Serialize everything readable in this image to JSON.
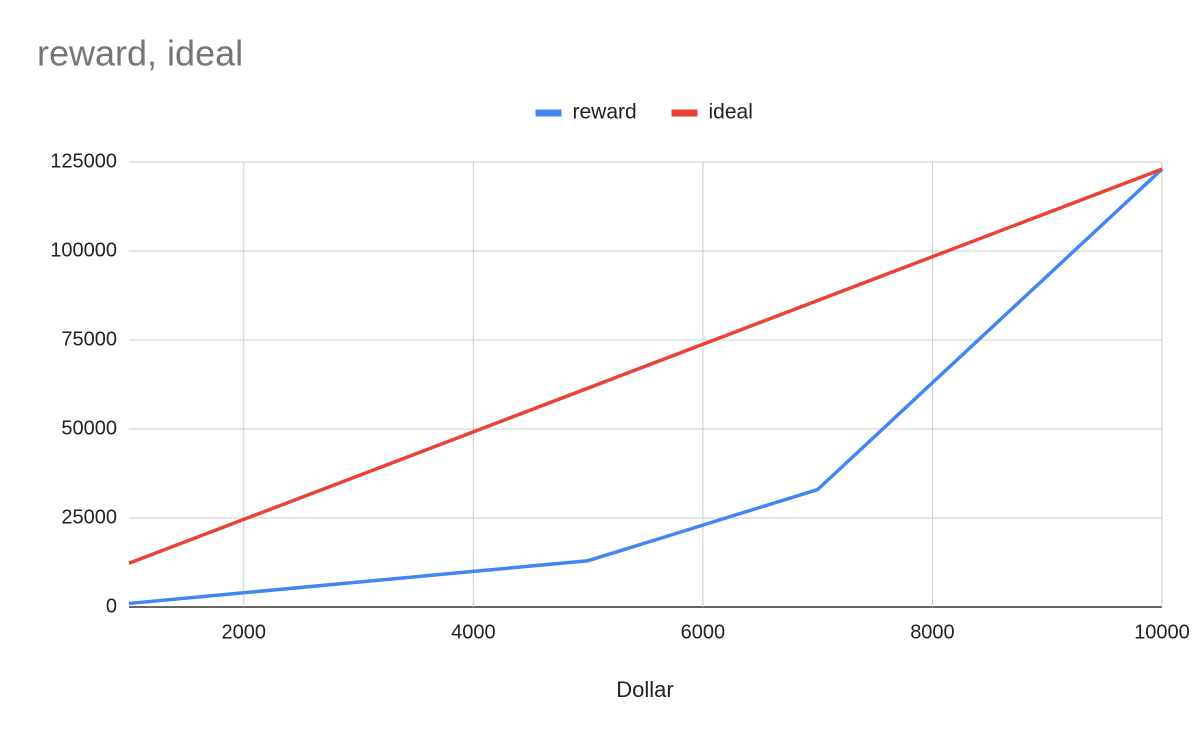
{
  "chart_data": {
    "type": "line",
    "title": "reward, ideal",
    "x_label": "Dollar",
    "x": [
      1000,
      2000,
      4000,
      5000,
      7000,
      10000
    ],
    "series": [
      {
        "name": "reward",
        "color": "#4285f4",
        "values": [
          1000,
          4000,
          10000,
          13000,
          33000,
          123000
        ]
      },
      {
        "name": "ideal",
        "color": "#ea4335",
        "values": [
          12300,
          24600,
          49200,
          61500,
          86100,
          123000
        ]
      }
    ],
    "xlim": [
      1000,
      10000
    ],
    "xticks": [
      2000,
      4000,
      6000,
      8000,
      10000
    ],
    "ylim": [
      0,
      125000
    ],
    "yticks": [
      0,
      25000,
      50000,
      75000,
      100000,
      125000
    ],
    "grid": true,
    "legend": "top"
  }
}
